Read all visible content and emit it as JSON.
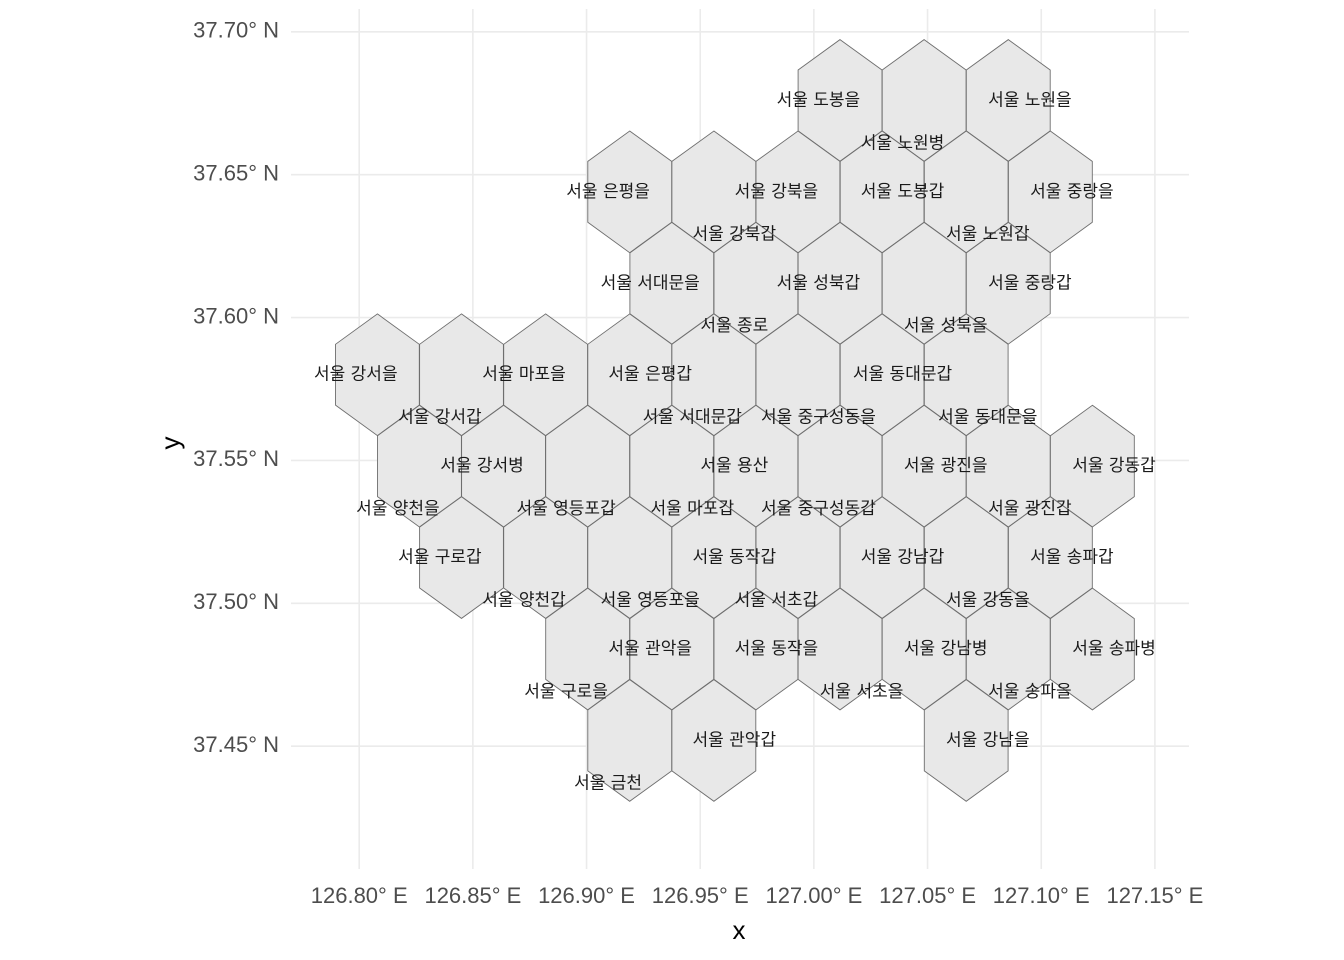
{
  "chart_data": {
    "type": "hexbin-map",
    "xlabel": "x",
    "ylabel": "y",
    "xlim": [
      126.77,
      127.165
    ],
    "ylim": [
      37.407,
      37.708
    ],
    "grid": true,
    "x_ticks": [
      {
        "value": 126.8,
        "label": "126.80° E"
      },
      {
        "value": 126.85,
        "label": "126.85° E"
      },
      {
        "value": 126.9,
        "label": "126.90° E"
      },
      {
        "value": 126.95,
        "label": "126.95° E"
      },
      {
        "value": 127.0,
        "label": "127.00° E"
      },
      {
        "value": 127.05,
        "label": "127.05° E"
      },
      {
        "value": 127.1,
        "label": "127.10° E"
      },
      {
        "value": 127.15,
        "label": "127.15° E"
      }
    ],
    "y_ticks": [
      {
        "value": 37.45,
        "label": "37.45° N"
      },
      {
        "value": 37.5,
        "label": "37.50° N"
      },
      {
        "value": 37.55,
        "label": "37.55° N"
      },
      {
        "value": 37.6,
        "label": "37.60° N"
      },
      {
        "value": 37.65,
        "label": "37.65° N"
      },
      {
        "value": 37.7,
        "label": "37.70° N"
      }
    ],
    "hex_radius": 0.0213,
    "hexes": [
      {
        "lon": 127.0115,
        "lat": 37.676
      },
      {
        "lon": 127.0485,
        "lat": 37.676
      },
      {
        "lon": 127.0855,
        "lat": 37.676
      },
      {
        "lon": 126.919,
        "lat": 37.644
      },
      {
        "lon": 126.956,
        "lat": 37.644
      },
      {
        "lon": 126.993,
        "lat": 37.644
      },
      {
        "lon": 127.03,
        "lat": 37.644
      },
      {
        "lon": 127.067,
        "lat": 37.644
      },
      {
        "lon": 127.104,
        "lat": 37.644
      },
      {
        "lon": 126.9375,
        "lat": 37.612
      },
      {
        "lon": 126.9745,
        "lat": 37.612
      },
      {
        "lon": 127.0115,
        "lat": 37.612
      },
      {
        "lon": 127.0485,
        "lat": 37.612
      },
      {
        "lon": 127.0855,
        "lat": 37.612
      },
      {
        "lon": 126.808,
        "lat": 37.58
      },
      {
        "lon": 126.845,
        "lat": 37.58
      },
      {
        "lon": 126.882,
        "lat": 37.58
      },
      {
        "lon": 126.919,
        "lat": 37.58
      },
      {
        "lon": 126.956,
        "lat": 37.58
      },
      {
        "lon": 126.993,
        "lat": 37.58
      },
      {
        "lon": 127.03,
        "lat": 37.58
      },
      {
        "lon": 127.067,
        "lat": 37.58
      },
      {
        "lon": 126.8265,
        "lat": 37.548
      },
      {
        "lon": 126.8635,
        "lat": 37.548
      },
      {
        "lon": 126.9005,
        "lat": 37.548
      },
      {
        "lon": 126.9375,
        "lat": 37.548
      },
      {
        "lon": 126.9745,
        "lat": 37.548
      },
      {
        "lon": 127.0115,
        "lat": 37.548
      },
      {
        "lon": 127.0485,
        "lat": 37.548
      },
      {
        "lon": 127.0855,
        "lat": 37.548
      },
      {
        "lon": 127.1225,
        "lat": 37.548
      },
      {
        "lon": 126.845,
        "lat": 37.516
      },
      {
        "lon": 126.882,
        "lat": 37.516
      },
      {
        "lon": 126.919,
        "lat": 37.516
      },
      {
        "lon": 126.956,
        "lat": 37.516
      },
      {
        "lon": 126.993,
        "lat": 37.516
      },
      {
        "lon": 127.03,
        "lat": 37.516
      },
      {
        "lon": 127.067,
        "lat": 37.516
      },
      {
        "lon": 127.104,
        "lat": 37.516
      },
      {
        "lon": 126.9005,
        "lat": 37.484
      },
      {
        "lon": 126.9375,
        "lat": 37.484
      },
      {
        "lon": 126.9745,
        "lat": 37.484
      },
      {
        "lon": 127.0115,
        "lat": 37.484
      },
      {
        "lon": 127.0485,
        "lat": 37.484
      },
      {
        "lon": 127.0855,
        "lat": 37.484
      },
      {
        "lon": 127.1225,
        "lat": 37.484
      },
      {
        "lon": 126.919,
        "lat": 37.452
      },
      {
        "lon": 126.956,
        "lat": 37.452
      },
      {
        "lon": 127.067,
        "lat": 37.452
      }
    ],
    "labels": [
      {
        "text": "서울 도봉을",
        "lon": 127.002,
        "lat": 37.676
      },
      {
        "text": "서울 노원을",
        "lon": 127.095,
        "lat": 37.676
      },
      {
        "text": "서울 노원병",
        "lon": 127.039,
        "lat": 37.661
      },
      {
        "text": "서울 은평을",
        "lon": 126.9095,
        "lat": 37.644
      },
      {
        "text": "서울 강북을",
        "lon": 126.9835,
        "lat": 37.644
      },
      {
        "text": "서울 도봉갑",
        "lon": 127.039,
        "lat": 37.644
      },
      {
        "text": "서울 중랑을",
        "lon": 127.1135,
        "lat": 37.644
      },
      {
        "text": "서울 강북갑",
        "lon": 126.965,
        "lat": 37.629
      },
      {
        "text": "서울 노원갑",
        "lon": 127.0765,
        "lat": 37.629
      },
      {
        "text": "서울 서대문을",
        "lon": 126.928,
        "lat": 37.612
      },
      {
        "text": "서울 성북갑",
        "lon": 127.002,
        "lat": 37.612
      },
      {
        "text": "서울 중랑갑",
        "lon": 127.095,
        "lat": 37.612
      },
      {
        "text": "서울 종로",
        "lon": 126.965,
        "lat": 37.597
      },
      {
        "text": "서울 성북을",
        "lon": 127.058,
        "lat": 37.597
      },
      {
        "text": "서울 강서을",
        "lon": 126.7985,
        "lat": 37.58
      },
      {
        "text": "서울 마포을",
        "lon": 126.8725,
        "lat": 37.58
      },
      {
        "text": "서울 은평갑",
        "lon": 126.928,
        "lat": 37.58
      },
      {
        "text": "서울 동대문갑",
        "lon": 127.039,
        "lat": 37.58
      },
      {
        "text": "서울 강서갑",
        "lon": 126.8355,
        "lat": 37.565
      },
      {
        "text": "서울 서대문갑",
        "lon": 126.9465,
        "lat": 37.565
      },
      {
        "text": "서울 중구성동을",
        "lon": 127.002,
        "lat": 37.565
      },
      {
        "text": "서울 동대문을",
        "lon": 127.0765,
        "lat": 37.565
      },
      {
        "text": "서울 강서병",
        "lon": 126.854,
        "lat": 37.548
      },
      {
        "text": "서울 용산",
        "lon": 126.965,
        "lat": 37.548
      },
      {
        "text": "서울 광진을",
        "lon": 127.058,
        "lat": 37.548
      },
      {
        "text": "서울 강동갑",
        "lon": 127.132,
        "lat": 37.548
      },
      {
        "text": "서울 양천을",
        "lon": 126.817,
        "lat": 37.533
      },
      {
        "text": "서울 영등포갑",
        "lon": 126.891,
        "lat": 37.533
      },
      {
        "text": "서울 마포갑",
        "lon": 126.9465,
        "lat": 37.533
      },
      {
        "text": "서울 중구성동갑",
        "lon": 127.002,
        "lat": 37.533
      },
      {
        "text": "서울 광진갑",
        "lon": 127.095,
        "lat": 37.533
      },
      {
        "text": "서울 구로갑",
        "lon": 126.8355,
        "lat": 37.516
      },
      {
        "text": "서울 동작갑",
        "lon": 126.965,
        "lat": 37.516
      },
      {
        "text": "서울 강남갑",
        "lon": 127.039,
        "lat": 37.516
      },
      {
        "text": "서울 송파갑",
        "lon": 127.1135,
        "lat": 37.516
      },
      {
        "text": "서울 양천갑",
        "lon": 126.8725,
        "lat": 37.501
      },
      {
        "text": "서울 영등포을",
        "lon": 126.928,
        "lat": 37.501
      },
      {
        "text": "서울 서초갑",
        "lon": 126.9835,
        "lat": 37.501
      },
      {
        "text": "서울 강동을",
        "lon": 127.0765,
        "lat": 37.501
      },
      {
        "text": "서울 관악을",
        "lon": 126.928,
        "lat": 37.484
      },
      {
        "text": "서울 동작을",
        "lon": 126.9835,
        "lat": 37.484
      },
      {
        "text": "서울 강남병",
        "lon": 127.058,
        "lat": 37.484
      },
      {
        "text": "서울 송파병",
        "lon": 127.132,
        "lat": 37.484
      },
      {
        "text": "서울 구로을",
        "lon": 126.891,
        "lat": 37.469
      },
      {
        "text": "서울 서초을",
        "lon": 127.021,
        "lat": 37.469
      },
      {
        "text": "서울 송파을",
        "lon": 127.095,
        "lat": 37.469
      },
      {
        "text": "서울 관악갑",
        "lon": 126.965,
        "lat": 37.452
      },
      {
        "text": "서울 강남을",
        "lon": 127.0765,
        "lat": 37.452
      },
      {
        "text": "서울 금천",
        "lon": 126.9095,
        "lat": 37.437
      }
    ]
  }
}
